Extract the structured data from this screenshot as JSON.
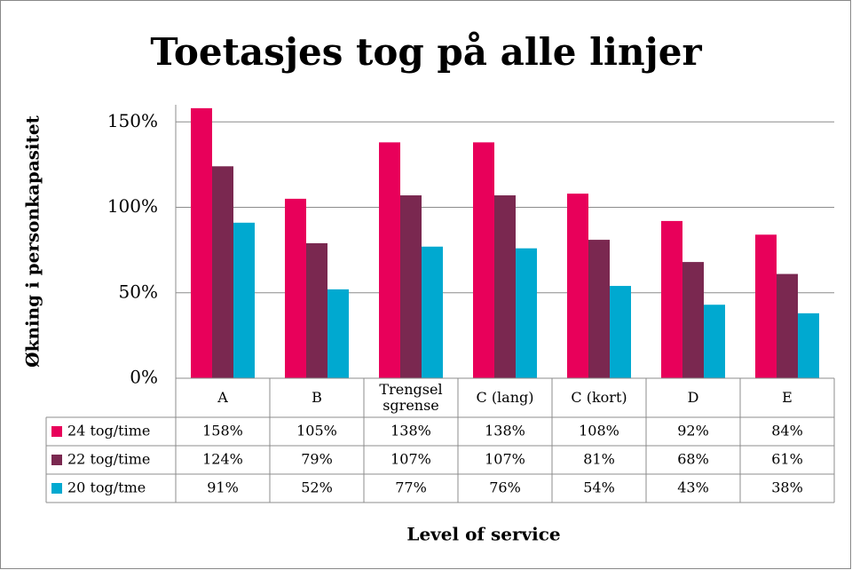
{
  "chart_data": {
    "type": "bar",
    "title": "Toetasjes tog på alle linjer",
    "ylabel": "Økning i personkapasitet",
    "xlabel": "Level of service",
    "categories": [
      "A",
      "B",
      "Trengsel sgrense",
      "C (lang)",
      "C (kort)",
      "D",
      "E"
    ],
    "series": [
      {
        "name": "24 tog/time",
        "color": "#e8005a",
        "values": [
          158,
          105,
          138,
          138,
          108,
          92,
          84
        ],
        "value_labels": [
          "158%",
          "105%",
          "138%",
          "138%",
          "108%",
          "92%",
          "84%"
        ]
      },
      {
        "name": "22 tog/time",
        "color": "#7a2850",
        "values": [
          124,
          79,
          107,
          107,
          81,
          68,
          61
        ],
        "value_labels": [
          "124%",
          "79%",
          "107%",
          "107%",
          "81%",
          "68%",
          "61%"
        ]
      },
      {
        "name": "20 tog/tme",
        "color": "#00a9d0",
        "values": [
          91,
          52,
          77,
          76,
          54,
          43,
          38
        ],
        "value_labels": [
          "91%",
          "52%",
          "77%",
          "76%",
          "54%",
          "43%",
          "38%"
        ]
      }
    ],
    "ylim": [
      0,
      160
    ],
    "yticks": [
      {
        "value": 0,
        "label": "0%"
      },
      {
        "value": 50,
        "label": "50%"
      },
      {
        "value": 100,
        "label": "100%"
      },
      {
        "value": 150,
        "label": "150%"
      }
    ],
    "grid": true
  }
}
